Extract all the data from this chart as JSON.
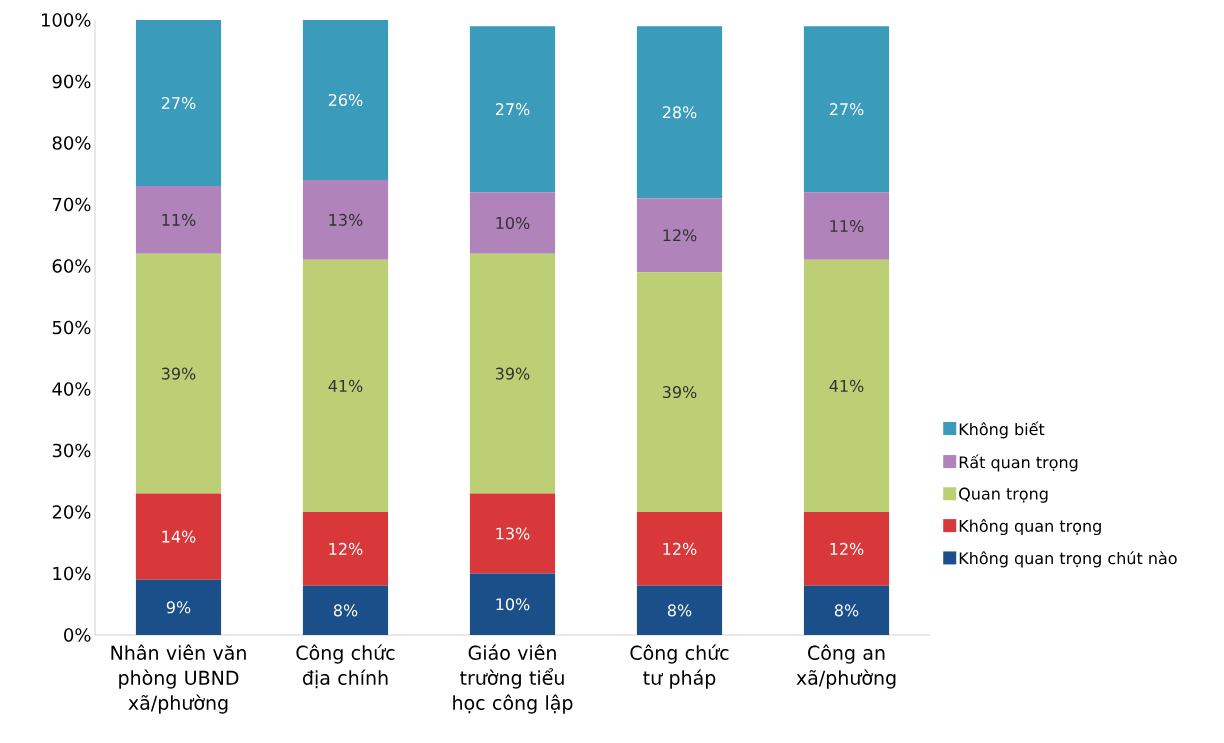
{
  "chart_data": {
    "type": "bar",
    "stacked": true,
    "categories": [
      "Nhân viên văn phòng UBND xã/phường",
      "Công chức địa chính",
      "Giáo viên trường tiểu học công lập",
      "Công chức tư pháp",
      "Công an xã/phường"
    ],
    "series": [
      {
        "name": "Không quan trọng chút nào",
        "color": "#1b4f8a",
        "values": [
          9,
          8,
          10,
          8,
          8
        ],
        "value_labels": [
          "9%",
          "8%",
          "10%",
          "8%",
          "8%"
        ]
      },
      {
        "name": "Không quan trọng",
        "color": "#d9383a",
        "values": [
          14,
          12,
          13,
          12,
          12
        ],
        "value_labels": [
          "14%",
          "12%",
          "13%",
          "12%",
          "12%"
        ]
      },
      {
        "name": "Quan trọng",
        "color": "#bccf74",
        "values": [
          39,
          41,
          39,
          39,
          41
        ],
        "value_labels": [
          "39%",
          "41%",
          "39%",
          "39%",
          "41%"
        ]
      },
      {
        "name": "Rất quan trọng",
        "color": "#b083bb",
        "values": [
          11,
          13,
          10,
          12,
          11
        ],
        "value_labels": [
          "11%",
          "13%",
          "10%",
          "12%",
          "11%"
        ]
      },
      {
        "name": "Không biết",
        "color": "#3a9bbb",
        "values": [
          27,
          26,
          27,
          28,
          27
        ],
        "value_labels": [
          "27%",
          "26%",
          "27%",
          "28%",
          "27%"
        ]
      }
    ],
    "ylim": [
      0,
      100
    ],
    "yticks": [
      {
        "value": 0,
        "label": "0%"
      },
      {
        "value": 10,
        "label": "10%"
      },
      {
        "value": 20,
        "label": "20%"
      },
      {
        "value": 30,
        "label": "30%"
      },
      {
        "value": 40,
        "label": "40%"
      },
      {
        "value": 50,
        "label": "50%"
      },
      {
        "value": 60,
        "label": "60%"
      },
      {
        "value": 70,
        "label": "70%"
      },
      {
        "value": 80,
        "label": "80%"
      },
      {
        "value": 90,
        "label": "90%"
      },
      {
        "value": 100,
        "label": "100%"
      }
    ],
    "grid": false,
    "legend": "right"
  }
}
